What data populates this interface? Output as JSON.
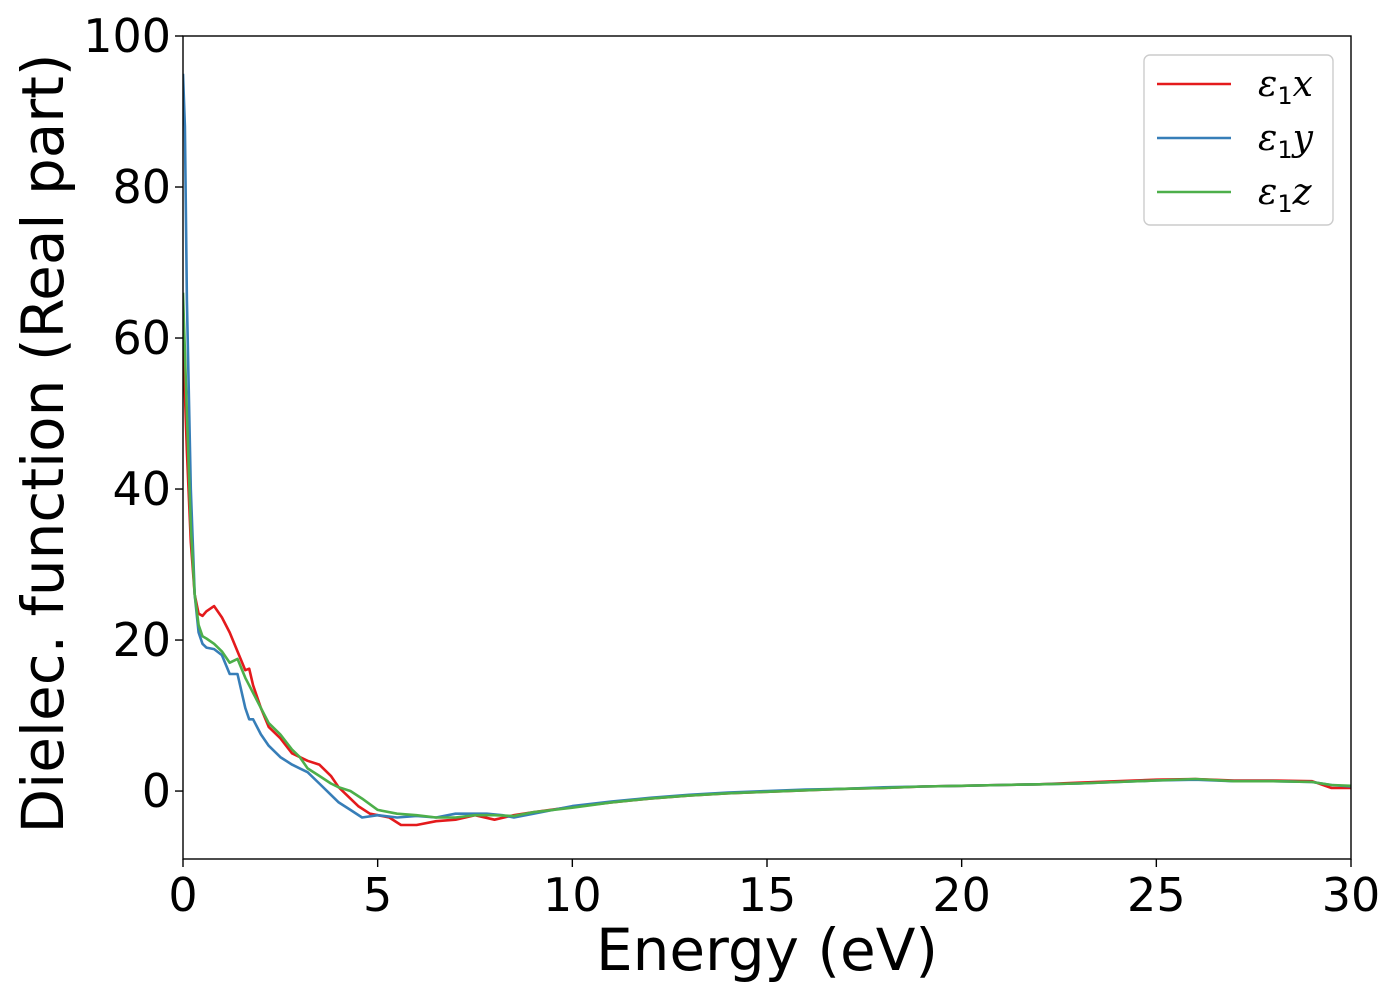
{
  "chart_data": {
    "type": "line",
    "xlabel": "Energy (eV)",
    "ylabel": "Dielec. function (Real part)",
    "xlim": [
      0,
      30
    ],
    "ylim": [
      -9,
      100
    ],
    "xticks": [
      0,
      5,
      10,
      15,
      20,
      25,
      30
    ],
    "yticks": [
      0,
      20,
      40,
      60,
      80,
      100
    ],
    "grid": false,
    "legend_position": "top-right",
    "series": [
      {
        "name": "ε1x",
        "legend_symbol": "ε",
        "legend_subscript": "1",
        "legend_suffix": "x",
        "color": "#e41a1c",
        "x": [
          0,
          0.1,
          0.2,
          0.3,
          0.4,
          0.5,
          0.6,
          0.8,
          1.0,
          1.2,
          1.4,
          1.6,
          1.7,
          1.8,
          2.0,
          2.2,
          2.5,
          2.8,
          3.0,
          3.2,
          3.5,
          3.8,
          4.0,
          4.2,
          4.5,
          4.8,
          5.0,
          5.3,
          5.6,
          6.0,
          6.5,
          7.0,
          7.5,
          8.0,
          8.5,
          9.0,
          10,
          11,
          12,
          13,
          14,
          15,
          16,
          17,
          18,
          19,
          20,
          21,
          22,
          23,
          24,
          25,
          26,
          27,
          28,
          29,
          29.5,
          30
        ],
        "y": [
          60,
          45,
          33,
          26,
          23.5,
          23.2,
          23.8,
          24.5,
          23,
          21,
          18.5,
          16,
          16.2,
          14,
          11,
          8.5,
          7,
          5,
          4.5,
          4,
          3.5,
          2,
          0.5,
          -0.5,
          -2,
          -3,
          -3.2,
          -3.5,
          -4.5,
          -4.5,
          -4,
          -3.8,
          -3.2,
          -3.8,
          -3.2,
          -2.8,
          -2.1,
          -1.5,
          -1,
          -0.6,
          -0.3,
          -0.1,
          0.1,
          0.3,
          0.4,
          0.6,
          0.7,
          0.8,
          0.9,
          1.1,
          1.3,
          1.5,
          1.6,
          1.4,
          1.4,
          1.3,
          0.4,
          0.4
        ]
      },
      {
        "name": "ε1y",
        "legend_symbol": "ε",
        "legend_subscript": "1",
        "legend_suffix": "y",
        "color": "#377eb8",
        "x": [
          0,
          0.05,
          0.1,
          0.2,
          0.3,
          0.4,
          0.5,
          0.6,
          0.8,
          1.0,
          1.2,
          1.4,
          1.6,
          1.7,
          1.8,
          2.0,
          2.2,
          2.5,
          2.8,
          3.0,
          3.2,
          3.5,
          3.8,
          4.0,
          4.3,
          4.6,
          5.0,
          5.5,
          6.0,
          6.5,
          7.0,
          7.5,
          7.8,
          8.2,
          8.5,
          9.0,
          10,
          11,
          12,
          13,
          14,
          15,
          16,
          17,
          18,
          19,
          20,
          21,
          22,
          23,
          24,
          25,
          26,
          27,
          28,
          29,
          29.5,
          30
        ],
        "y": [
          95,
          88,
          65,
          40,
          26,
          21,
          19.5,
          19,
          18.8,
          18,
          15.5,
          15.5,
          11,
          9.5,
          9.5,
          7.5,
          6,
          4.5,
          3.5,
          3,
          2.5,
          1,
          -0.5,
          -1.5,
          -2.5,
          -3.5,
          -3.2,
          -3.5,
          -3.3,
          -3.5,
          -3,
          -3,
          -3,
          -3.2,
          -3.5,
          -3,
          -2,
          -1.4,
          -0.9,
          -0.5,
          -0.2,
          0,
          0.2,
          0.3,
          0.5,
          0.6,
          0.7,
          0.8,
          0.9,
          1.0,
          1.2,
          1.4,
          1.5,
          1.3,
          1.3,
          1.2,
          0.8,
          0.6
        ]
      },
      {
        "name": "ε1z",
        "legend_symbol": "ε",
        "legend_subscript": "1",
        "legend_suffix": "z",
        "color": "#4daf4a",
        "x": [
          0,
          0.1,
          0.2,
          0.3,
          0.4,
          0.5,
          0.6,
          0.8,
          1.0,
          1.2,
          1.4,
          1.6,
          1.8,
          2.0,
          2.2,
          2.5,
          2.8,
          3.0,
          3.2,
          3.5,
          3.8,
          4.0,
          4.3,
          4.6,
          5.0,
          5.5,
          6.0,
          6.5,
          7.0,
          7.5,
          8.0,
          8.5,
          9.0,
          10,
          11,
          12,
          13,
          14,
          15,
          16,
          17,
          18,
          19,
          20,
          21,
          22,
          23,
          24,
          25,
          26,
          27,
          28,
          29,
          29.5,
          30
        ],
        "y": [
          66,
          50,
          35,
          26,
          22,
          20.5,
          20.2,
          19.5,
          18.5,
          17,
          17.5,
          15,
          13,
          11,
          9,
          7.5,
          5.5,
          4.5,
          3,
          2,
          1,
          0.5,
          0,
          -1,
          -2.5,
          -3,
          -3.2,
          -3.5,
          -3.5,
          -3.2,
          -3.2,
          -3.3,
          -2.8,
          -2.2,
          -1.5,
          -1,
          -0.6,
          -0.3,
          -0.1,
          0.1,
          0.3,
          0.4,
          0.6,
          0.7,
          0.8,
          0.9,
          1.0,
          1.2,
          1.4,
          1.6,
          1.3,
          1.3,
          1.2,
          0.8,
          0.7
        ]
      }
    ]
  }
}
